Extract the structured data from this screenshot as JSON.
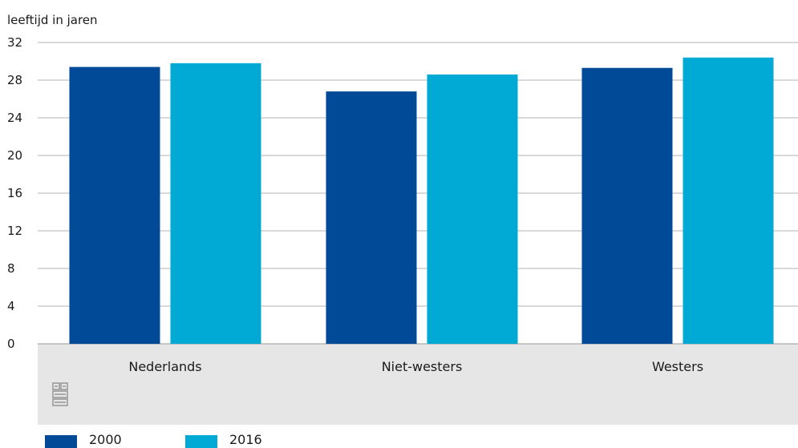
{
  "chart_data": {
    "type": "bar",
    "title": "",
    "xlabel": "",
    "ylabel": "leeftijd in jaren",
    "categories": [
      "Nederlands",
      "Niet-westers",
      "Westers"
    ],
    "series": [
      {
        "name": "2000",
        "color": "#004a98",
        "values": [
          29.4,
          26.8,
          29.3
        ]
      },
      {
        "name": "2016",
        "color": "#00aad4",
        "values": [
          29.8,
          28.6,
          30.4
        ]
      }
    ],
    "ylim": [
      0,
      32
    ],
    "yticks": [
      "0",
      "4",
      "8",
      "12",
      "16",
      "20",
      "24",
      "28",
      "32"
    ],
    "grid": true,
    "legend": "bottom-left"
  },
  "logo": {
    "icon": "cbs-logo-icon"
  },
  "colors": {
    "axis_band": "#e6e6e6",
    "grid": "#b3b3b3",
    "logo": "#9a9a9a"
  }
}
